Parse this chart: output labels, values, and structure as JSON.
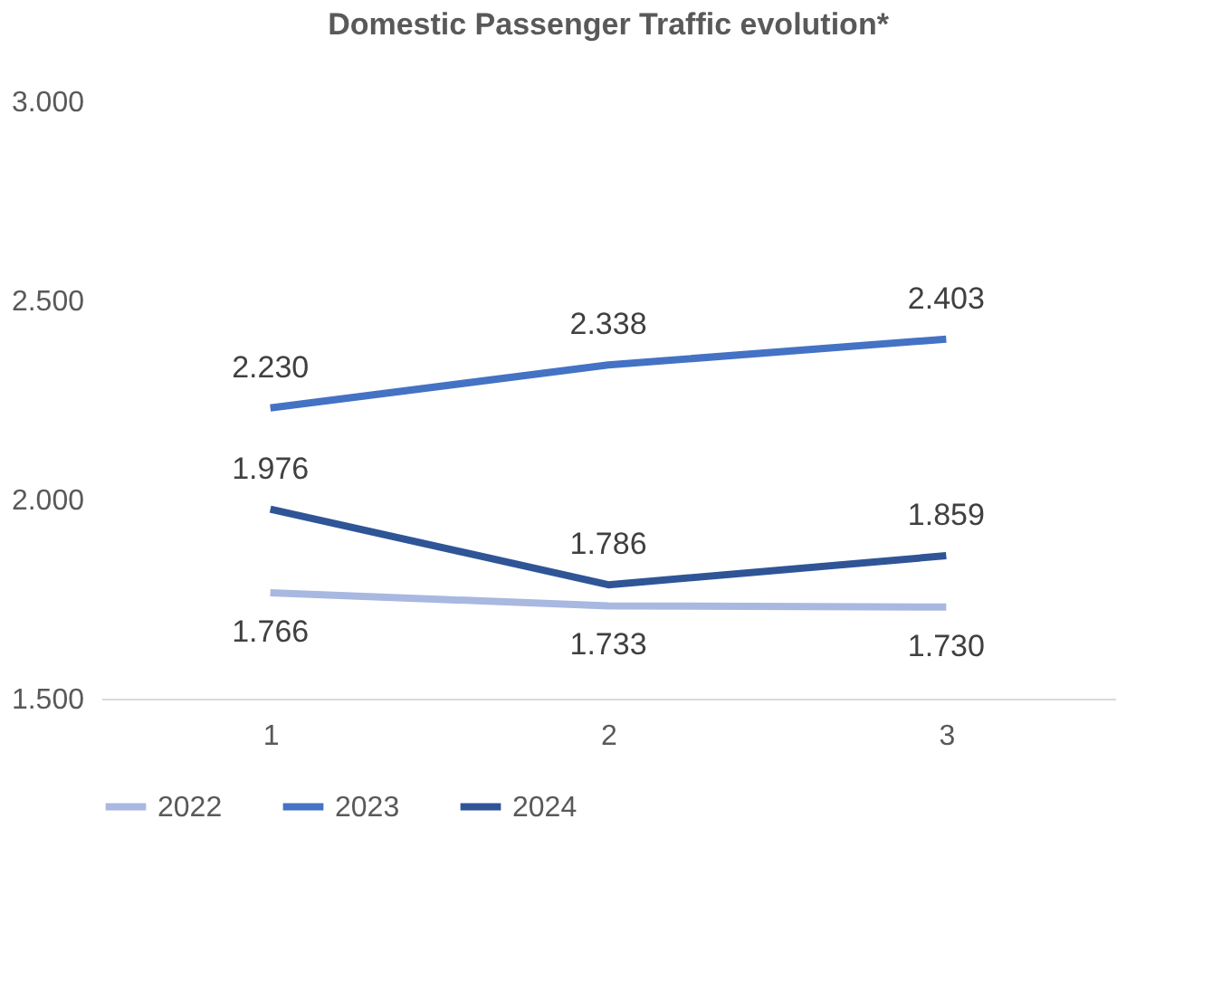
{
  "chart_data": {
    "type": "line",
    "title": "Domestic Passenger Traffic evolution*",
    "categories": [
      "1",
      "2",
      "3"
    ],
    "series": [
      {
        "name": "2022",
        "color": "#a9b8e0",
        "values": [
          1766,
          1733,
          1730
        ],
        "value_labels": [
          "1.766",
          "1.733",
          "1.730"
        ]
      },
      {
        "name": "2023",
        "color": "#4472c4",
        "values": [
          2230,
          2338,
          2403
        ],
        "value_labels": [
          "2.230",
          "2.338",
          "2.403"
        ]
      },
      {
        "name": "2024",
        "color": "#2f5597",
        "values": [
          1976,
          1786,
          1859
        ],
        "value_labels": [
          "1.976",
          "1.786",
          "1.859"
        ]
      }
    ],
    "ylim": [
      1500,
      3000
    ],
    "yticks": [
      {
        "value": 1500,
        "label": "1.500"
      },
      {
        "value": 2000,
        "label": "2.000"
      },
      {
        "value": 2500,
        "label": "2.500"
      },
      {
        "value": 3000,
        "label": "3.000"
      }
    ],
    "grid": false,
    "legend": "bottom",
    "marker": "none",
    "line_style": "solid"
  }
}
